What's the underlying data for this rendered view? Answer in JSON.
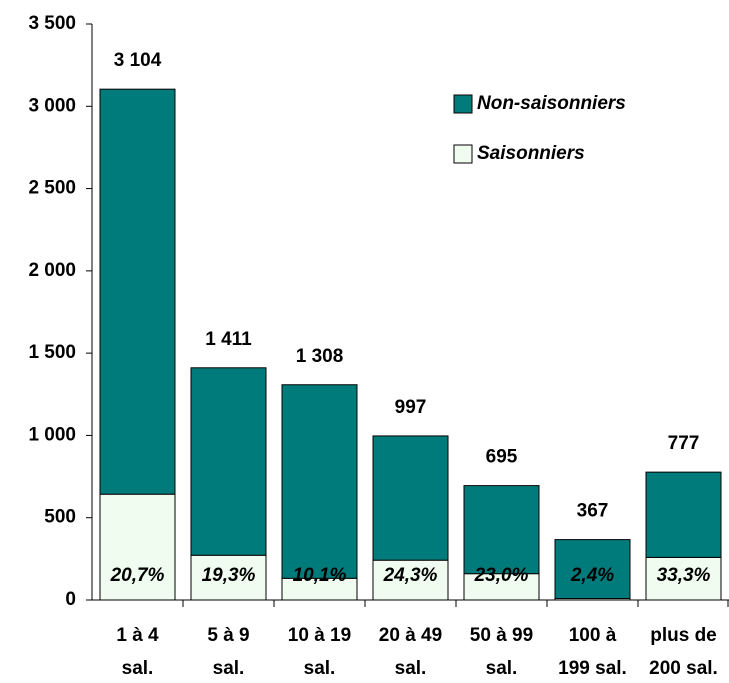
{
  "chart_data": {
    "type": "stacked_bar",
    "categories": [
      [
        "1 à 4",
        "sal."
      ],
      [
        "5 à 9",
        "sal."
      ],
      [
        "10 à 19",
        "sal."
      ],
      [
        "20 à 49",
        "sal."
      ],
      [
        "50 à 99",
        "sal."
      ],
      [
        "100 à",
        "199 sal."
      ],
      [
        "plus de",
        "200 sal."
      ]
    ],
    "series": [
      {
        "name": "Saisonniers",
        "color": "#effcef",
        "values": [
          643,
          272,
          132,
          242,
          160,
          9,
          259
        ]
      },
      {
        "name": "Non-saisonniers",
        "color": "#007b7b",
        "values": [
          2461,
          1139,
          1176,
          755,
          535,
          358,
          518
        ]
      }
    ],
    "totals": [
      3104,
      1411,
      1308,
      997,
      695,
      367,
      777
    ],
    "total_labels": [
      "3 104",
      "1 411",
      "1 308",
      "997",
      "695",
      "367",
      "777"
    ],
    "shares": [
      20.7,
      19.3,
      10.1,
      24.3,
      23.0,
      2.4,
      33.3
    ],
    "share_labels": [
      "20,7%",
      "19,3%",
      "10,1%",
      "24,3%",
      "23,0%",
      "2,4%",
      "33,3%"
    ],
    "ylim": [
      0,
      3500
    ],
    "yticks": [
      0,
      500,
      {
        "value": 1000,
        "label": "1 000"
      },
      {
        "value": 1500,
        "label": "1 500"
      },
      {
        "value": 2000,
        "label": "2 000"
      },
      {
        "value": 2500,
        "label": "2 500"
      },
      {
        "value": 3000,
        "label": "3 000"
      },
      {
        "value": 3500,
        "label": "3 500"
      }
    ],
    "legend": "top-right"
  }
}
